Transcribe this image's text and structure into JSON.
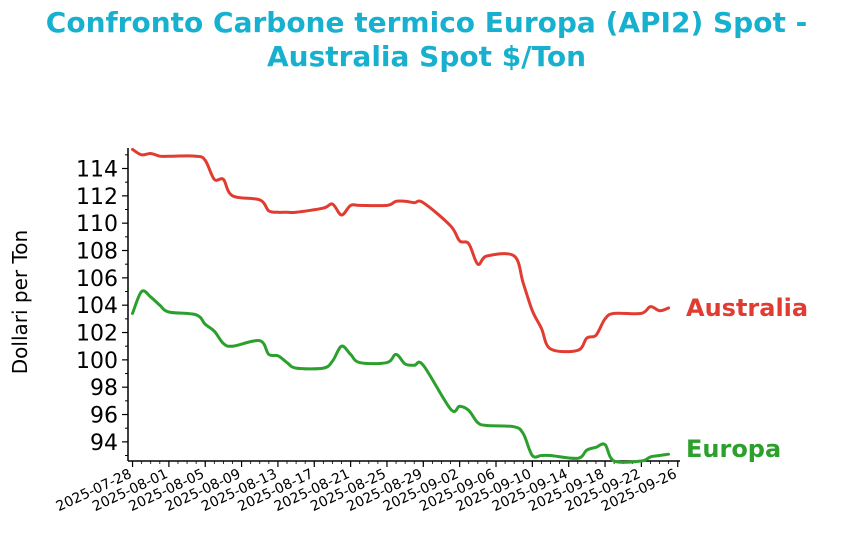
{
  "title_line1": "Confronto Carbone termico Europa (API2) Spot -",
  "title_line2": "Australia Spot $/Ton",
  "chart_data": {
    "type": "line",
    "title": "Confronto Carbone termico Europa (API2) Spot - Australia Spot $/Ton",
    "xlabel": "",
    "ylabel": "Dollari per Ton",
    "ylim": [
      92.6,
      115.5
    ],
    "yticks": [
      94,
      96,
      98,
      100,
      102,
      104,
      106,
      108,
      110,
      112,
      114
    ],
    "xticks": [
      "2025-07-28",
      "2025-08-01",
      "2025-08-05",
      "2025-08-09",
      "2025-08-13",
      "2025-08-17",
      "2025-08-21",
      "2025-08-25",
      "2025-08-29",
      "2025-09-02",
      "2025-09-06",
      "2025-09-10",
      "2025-09-14",
      "2025-09-18",
      "2025-09-22",
      "2025-09-26"
    ],
    "x": [
      "2025-07-28",
      "2025-07-29",
      "2025-07-30",
      "2025-07-31",
      "2025-08-01",
      "2025-08-04",
      "2025-08-05",
      "2025-08-06",
      "2025-08-07",
      "2025-08-08",
      "2025-08-11",
      "2025-08-12",
      "2025-08-13",
      "2025-08-14",
      "2025-08-15",
      "2025-08-18",
      "2025-08-19",
      "2025-08-20",
      "2025-08-21",
      "2025-08-22",
      "2025-08-25",
      "2025-08-26",
      "2025-08-27",
      "2025-08-28",
      "2025-08-29",
      "2025-09-01",
      "2025-09-02",
      "2025-09-03",
      "2025-09-04",
      "2025-09-05",
      "2025-09-08",
      "2025-09-09",
      "2025-09-10",
      "2025-09-11",
      "2025-09-12",
      "2025-09-15",
      "2025-09-16",
      "2025-09-17",
      "2025-09-18",
      "2025-09-19",
      "2025-09-22",
      "2025-09-23",
      "2025-09-24",
      "2025-09-25"
    ],
    "series": [
      {
        "name": "Australia",
        "color": "#e03c31",
        "values": [
          115.4,
          115.0,
          115.1,
          114.9,
          114.9,
          114.9,
          114.6,
          113.2,
          113.2,
          112.0,
          111.7,
          110.9,
          110.8,
          110.8,
          110.8,
          111.1,
          111.4,
          110.6,
          111.3,
          111.3,
          111.3,
          111.6,
          111.6,
          111.5,
          111.5,
          109.8,
          108.7,
          108.5,
          107.0,
          107.6,
          107.6,
          105.6,
          103.6,
          102.3,
          100.8,
          100.7,
          101.6,
          101.8,
          103.0,
          103.4,
          103.4,
          103.9,
          103.6,
          103.8
        ]
      },
      {
        "name": "Europa",
        "color": "#2ca02c",
        "values": [
          103.4,
          105.0,
          104.6,
          104.0,
          103.5,
          103.3,
          102.6,
          102.1,
          101.2,
          101.0,
          101.4,
          100.4,
          100.3,
          99.8,
          99.4,
          99.4,
          99.9,
          101.0,
          100.4,
          99.8,
          99.8,
          100.4,
          99.7,
          99.6,
          99.6,
          96.4,
          96.6,
          96.3,
          95.4,
          95.2,
          95.1,
          94.6,
          93.0,
          93.0,
          93.0,
          92.8,
          93.4,
          93.6,
          93.8,
          92.6,
          92.6,
          92.9,
          93.0,
          93.1
        ]
      }
    ]
  }
}
